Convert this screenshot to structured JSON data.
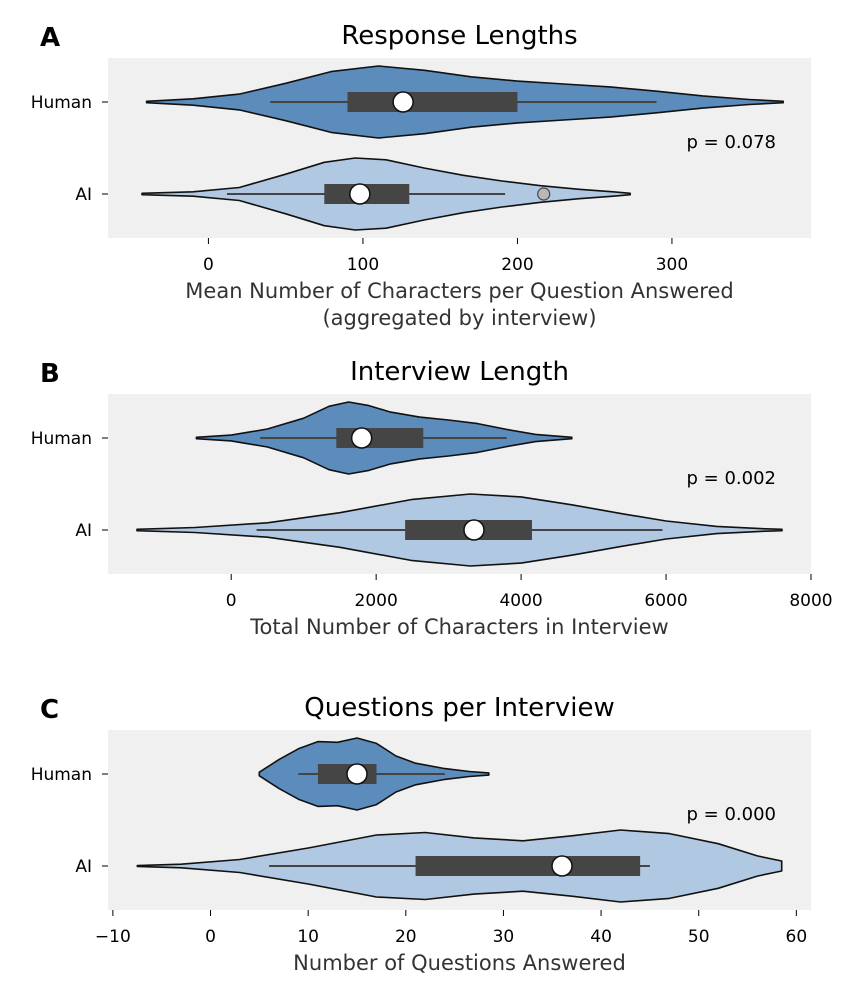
{
  "chart_data": [
    {
      "type": "violin",
      "panel_letter": "A",
      "title": "Response Lengths",
      "xlabel_lines": [
        "Mean Number of Characters per Question Answered",
        "(aggregated by interview)"
      ],
      "xlim": [
        -65,
        390
      ],
      "xticks": [
        0,
        100,
        200,
        300
      ],
      "xtick_labels": [
        "0",
        "100",
        "200",
        "300"
      ],
      "categories": [
        "Human",
        "AI"
      ],
      "annotation": "p = 0.078",
      "groups": [
        {
          "name": "Human",
          "color": "#5b8cbc",
          "density": [
            [
              -40,
              0.02
            ],
            [
              -10,
              0.09
            ],
            [
              20,
              0.22
            ],
            [
              50,
              0.52
            ],
            [
              80,
              0.85
            ],
            [
              110,
              1.0
            ],
            [
              140,
              0.88
            ],
            [
              170,
              0.7
            ],
            [
              200,
              0.58
            ],
            [
              230,
              0.5
            ],
            [
              260,
              0.42
            ],
            [
              290,
              0.3
            ],
            [
              320,
              0.17
            ],
            [
              350,
              0.07
            ],
            [
              372,
              0.02
            ]
          ],
          "whisker": [
            40,
            290
          ],
          "box": [
            90,
            200
          ],
          "median": 126,
          "outliers": []
        },
        {
          "name": "AI",
          "color": "#b1c8e2",
          "density": [
            [
              -43,
              0.02
            ],
            [
              -10,
              0.06
            ],
            [
              20,
              0.18
            ],
            [
              50,
              0.55
            ],
            [
              75,
              0.88
            ],
            [
              95,
              1.0
            ],
            [
              115,
              0.95
            ],
            [
              140,
              0.72
            ],
            [
              165,
              0.52
            ],
            [
              190,
              0.36
            ],
            [
              215,
              0.23
            ],
            [
              240,
              0.13
            ],
            [
              262,
              0.06
            ],
            [
              273,
              0.02
            ]
          ],
          "whisker": [
            12,
            192
          ],
          "box": [
            75,
            130
          ],
          "median": 98,
          "outliers": [
            217
          ]
        }
      ]
    },
    {
      "type": "violin",
      "panel_letter": "B",
      "title": "Interview Length",
      "xlabel_lines": [
        "Total Number of Characters in Interview"
      ],
      "xlim": [
        -1700,
        8000
      ],
      "xticks": [
        0,
        2000,
        4000,
        6000,
        8000
      ],
      "xtick_labels": [
        "0",
        "2000",
        "4000",
        "6000",
        "8000"
      ],
      "categories": [
        "Human",
        "AI"
      ],
      "annotation": "p = 0.002",
      "groups": [
        {
          "name": "Human",
          "color": "#5b8cbc",
          "density": [
            [
              -480,
              0.02
            ],
            [
              0,
              0.08
            ],
            [
              500,
              0.25
            ],
            [
              1000,
              0.55
            ],
            [
              1350,
              0.88
            ],
            [
              1620,
              1.0
            ],
            [
              1900,
              0.9
            ],
            [
              2200,
              0.72
            ],
            [
              2600,
              0.58
            ],
            [
              3000,
              0.5
            ],
            [
              3400,
              0.4
            ],
            [
              3800,
              0.24
            ],
            [
              4200,
              0.1
            ],
            [
              4700,
              0.02
            ]
          ],
          "whisker": [
            400,
            3800
          ],
          "box": [
            1450,
            2650
          ],
          "median": 1800,
          "outliers": []
        },
        {
          "name": "AI",
          "color": "#b1c8e2",
          "density": [
            [
              -1300,
              0.02
            ],
            [
              -500,
              0.07
            ],
            [
              500,
              0.2
            ],
            [
              1500,
              0.48
            ],
            [
              2500,
              0.85
            ],
            [
              3300,
              1.0
            ],
            [
              4000,
              0.92
            ],
            [
              4700,
              0.7
            ],
            [
              5400,
              0.45
            ],
            [
              6000,
              0.25
            ],
            [
              6700,
              0.1
            ],
            [
              7300,
              0.04
            ],
            [
              7600,
              0.02
            ]
          ],
          "whisker": [
            350,
            5950
          ],
          "box": [
            2400,
            4150
          ],
          "median": 3350,
          "outliers": []
        }
      ]
    },
    {
      "type": "violin",
      "panel_letter": "C",
      "title": "Questions per Interview",
      "xlabel_lines": [
        "Number of Questions Answered"
      ],
      "xlim": [
        -10.5,
        61.5
      ],
      "xticks": [
        -10,
        0,
        10,
        20,
        30,
        40,
        50,
        60
      ],
      "xtick_labels": [
        "−10",
        "0",
        "10",
        "20",
        "30",
        "40",
        "50",
        "60"
      ],
      "categories": [
        "Human",
        "AI"
      ],
      "annotation": "p = 0.000",
      "groups": [
        {
          "name": "Human",
          "color": "#5b8cbc",
          "density": [
            [
              5,
              0.05
            ],
            [
              7,
              0.4
            ],
            [
              9,
              0.7
            ],
            [
              11,
              0.9
            ],
            [
              13,
              0.88
            ],
            [
              15,
              1.0
            ],
            [
              17,
              0.85
            ],
            [
              19,
              0.5
            ],
            [
              21,
              0.3
            ],
            [
              24,
              0.15
            ],
            [
              26.5,
              0.07
            ],
            [
              28.5,
              0.03
            ]
          ],
          "whisker": [
            9,
            24
          ],
          "box": [
            11,
            17
          ],
          "median": 15,
          "outliers": []
        },
        {
          "name": "AI",
          "color": "#b1c8e2",
          "density": [
            [
              -7.5,
              0.01
            ],
            [
              -3,
              0.05
            ],
            [
              3,
              0.18
            ],
            [
              10,
              0.5
            ],
            [
              17,
              0.86
            ],
            [
              22,
              0.93
            ],
            [
              27,
              0.78
            ],
            [
              32,
              0.7
            ],
            [
              37,
              0.84
            ],
            [
              42,
              1.0
            ],
            [
              47,
              0.9
            ],
            [
              52,
              0.62
            ],
            [
              56,
              0.28
            ],
            [
              58.5,
              0.14
            ]
          ],
          "whisker": [
            6,
            45
          ],
          "box": [
            21,
            44
          ],
          "median": 36,
          "outliers": []
        }
      ]
    }
  ]
}
